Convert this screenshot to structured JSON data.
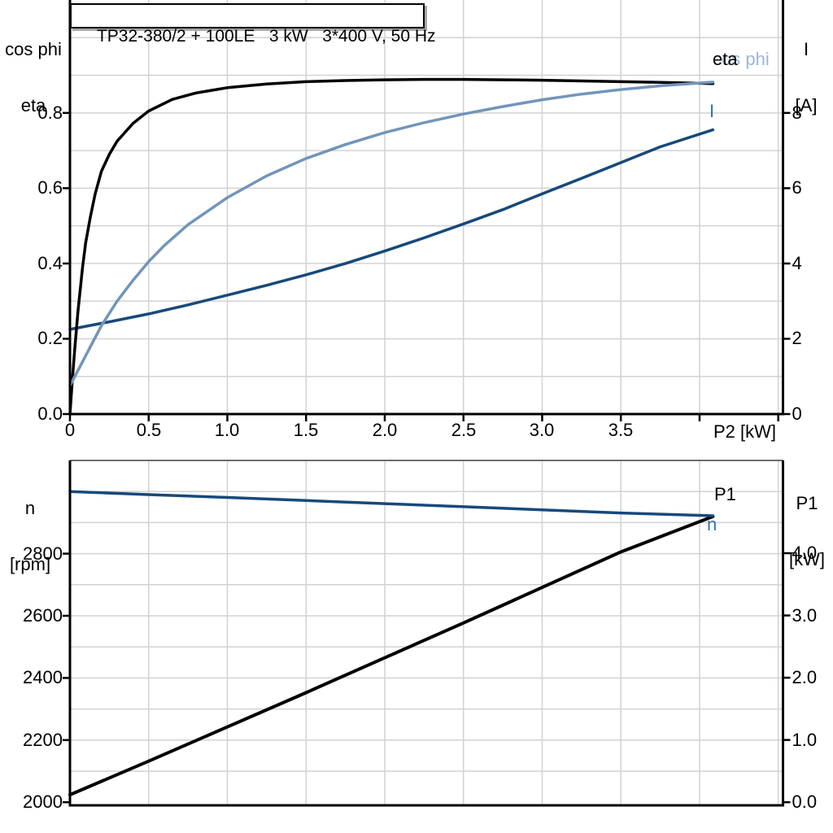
{
  "title_box": {
    "text": "TP32-380/2 + 100LE   3 kW   3*400 V, 50 Hz"
  },
  "colors": {
    "black": "#000000",
    "curve_light_blue": "#7295BA",
    "curve_dark_blue": "#17497B",
    "label_blue": "#2E74B5",
    "label_light_blue": "#9CB6D4",
    "gridline": "#D2D2D2",
    "frame_gray": "#6E6E6E",
    "axis": "#000000"
  },
  "chart_data": [
    {
      "name": "efficiency-current-chart",
      "type": "line",
      "x_axis": {
        "title": "P2 [kW]",
        "min": 0,
        "max": 4.53,
        "gridlines": [
          0.5,
          1.0,
          1.5,
          2.0,
          2.5,
          3.0,
          3.5,
          4.0,
          4.5
        ],
        "tick_values": [
          0,
          0.5,
          1.0,
          1.5,
          2.0,
          2.5,
          3.0,
          3.5,
          4.0,
          4.5
        ],
        "tick_labels": [
          "0",
          "0.5",
          "1.0",
          "1.5",
          "2.0",
          "2.5",
          "3.0",
          "3.5",
          "",
          ""
        ]
      },
      "y_axis_left": {
        "title_line1": "cos phi",
        "title_line2": "eta",
        "min": 0,
        "max": 1.1,
        "gridlines": [
          0.1,
          0.2,
          0.3,
          0.4,
          0.5,
          0.6,
          0.7,
          0.8,
          0.9,
          1.0
        ],
        "tick_values": [
          0,
          0.2,
          0.4,
          0.6,
          0.8
        ],
        "tick_labels": [
          "0.0",
          "0.2",
          "0.4",
          "0.6",
          "0.8"
        ]
      },
      "y_axis_right": {
        "title_line1": "I",
        "title_line2": "[A]",
        "min": 0,
        "max": 11,
        "tick_values": [
          0,
          2,
          4,
          6,
          8
        ],
        "tick_labels": [
          "0",
          "2",
          "4",
          "6",
          "8"
        ]
      },
      "series": [
        {
          "id": "current",
          "label": "I",
          "axis": "right",
          "color": "curve_dark_blue",
          "label_color": "label_blue",
          "width": 3.5,
          "points": [
            [
              0,
              2.25
            ],
            [
              0.25,
              2.45
            ],
            [
              0.5,
              2.66
            ],
            [
              0.75,
              2.9
            ],
            [
              1.0,
              3.16
            ],
            [
              1.25,
              3.42
            ],
            [
              1.5,
              3.7
            ],
            [
              1.75,
              4.0
            ],
            [
              2.0,
              4.33
            ],
            [
              2.25,
              4.68
            ],
            [
              2.5,
              5.05
            ],
            [
              2.75,
              5.43
            ],
            [
              3.0,
              5.85
            ],
            [
              3.25,
              6.26
            ],
            [
              3.5,
              6.68
            ],
            [
              3.75,
              7.1
            ],
            [
              4.085,
              7.55
            ]
          ]
        },
        {
          "id": "eta",
          "label": "eta",
          "axis": "left",
          "color": "black",
          "label_color": "black",
          "width": 3.5,
          "points": [
            [
              0,
              0
            ],
            [
              0.015,
              0.09
            ],
            [
              0.03,
              0.17
            ],
            [
              0.05,
              0.27
            ],
            [
              0.08,
              0.39
            ],
            [
              0.1,
              0.455
            ],
            [
              0.13,
              0.525
            ],
            [
              0.16,
              0.585
            ],
            [
              0.2,
              0.645
            ],
            [
              0.25,
              0.69
            ],
            [
              0.3,
              0.725
            ],
            [
              0.4,
              0.772
            ],
            [
              0.5,
              0.805
            ],
            [
              0.65,
              0.836
            ],
            [
              0.8,
              0.853
            ],
            [
              1.0,
              0.867
            ],
            [
              1.25,
              0.877
            ],
            [
              1.5,
              0.883
            ],
            [
              1.75,
              0.886
            ],
            [
              2.0,
              0.888
            ],
            [
              2.25,
              0.889
            ],
            [
              2.5,
              0.889
            ],
            [
              2.75,
              0.888
            ],
            [
              3.0,
              0.887
            ],
            [
              3.25,
              0.885
            ],
            [
              3.5,
              0.883
            ],
            [
              3.75,
              0.881
            ],
            [
              4.085,
              0.878
            ]
          ]
        },
        {
          "id": "cos-phi",
          "label": "cos phi",
          "axis": "left",
          "color": "curve_light_blue",
          "label_color": "label_light_blue",
          "width": 3.5,
          "points": [
            [
              0,
              0.075
            ],
            [
              0.1,
              0.155
            ],
            [
              0.2,
              0.235
            ],
            [
              0.3,
              0.3
            ],
            [
              0.4,
              0.355
            ],
            [
              0.5,
              0.405
            ],
            [
              0.6,
              0.448
            ],
            [
              0.75,
              0.503
            ],
            [
              1.0,
              0.575
            ],
            [
              1.25,
              0.633
            ],
            [
              1.5,
              0.679
            ],
            [
              1.75,
              0.716
            ],
            [
              2.0,
              0.748
            ],
            [
              2.25,
              0.774
            ],
            [
              2.5,
              0.797
            ],
            [
              2.75,
              0.817
            ],
            [
              3.0,
              0.835
            ],
            [
              3.25,
              0.85
            ],
            [
              3.5,
              0.862
            ],
            [
              3.75,
              0.872
            ],
            [
              4.085,
              0.882
            ]
          ]
        }
      ]
    },
    {
      "name": "speed-power-chart",
      "type": "line",
      "x_axis": {
        "title": "",
        "min": 0,
        "max": 4.53,
        "gridlines": [
          0.5,
          1.0,
          1.5,
          2.0,
          2.5,
          3.0,
          3.5,
          4.0,
          4.5
        ],
        "tick_values": [],
        "tick_labels": []
      },
      "y_axis_left": {
        "title_line1": "n",
        "title_line2": "[rpm]",
        "min": 1990,
        "max": 3100,
        "gridlines": [
          2100,
          2200,
          2300,
          2400,
          2500,
          2600,
          2700,
          2800,
          2900,
          3000
        ],
        "tick_values": [
          2000,
          2200,
          2400,
          2600,
          2800
        ],
        "tick_labels": [
          "2000",
          "2200",
          "2400",
          "2600",
          "2800"
        ]
      },
      "y_axis_right": {
        "title_line1": "P1",
        "title_line2": "[kW]",
        "min": -0.05,
        "max": 5.49,
        "tick_values": [
          0,
          1,
          2,
          3,
          4
        ],
        "tick_labels": [
          "0.0",
          "1.0",
          "2.0",
          "3.0",
          "4.0"
        ]
      },
      "series": [
        {
          "id": "p1",
          "label": "P1",
          "axis": "right",
          "color": "black",
          "label_color": "black",
          "width": 4,
          "points": [
            [
              0,
              0.12
            ],
            [
              0.5,
              0.66
            ],
            [
              1.0,
              1.21
            ],
            [
              1.5,
              1.76
            ],
            [
              2.0,
              2.32
            ],
            [
              2.5,
              2.88
            ],
            [
              3.0,
              3.45
            ],
            [
              3.5,
              4.02
            ],
            [
              4.085,
              4.59
            ]
          ]
        },
        {
          "id": "n",
          "label": "n",
          "axis": "left",
          "color": "curve_dark_blue",
          "label_color": "label_blue",
          "width": 3.5,
          "points": [
            [
              0,
              3000
            ],
            [
              0.5,
              2990
            ],
            [
              1.0,
              2981
            ],
            [
              1.5,
              2971
            ],
            [
              2.0,
              2961
            ],
            [
              2.5,
              2951
            ],
            [
              3.0,
              2941
            ],
            [
              3.5,
              2931
            ],
            [
              4.085,
              2922
            ]
          ]
        }
      ]
    }
  ]
}
